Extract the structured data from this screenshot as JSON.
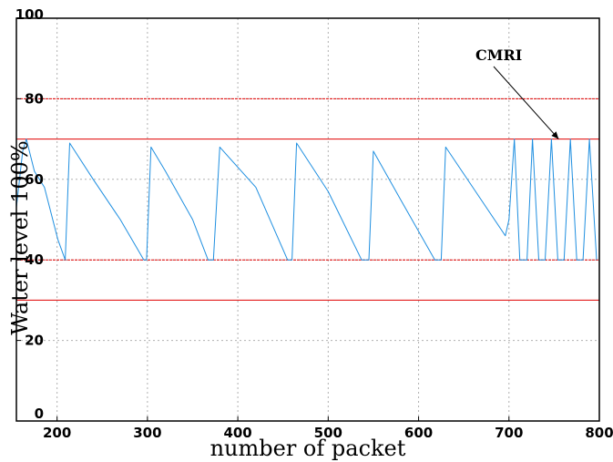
{
  "chart_data": {
    "type": "line",
    "title": "",
    "xlabel": "number of packet",
    "ylabel": "Water level 100%",
    "xlim": [
      155,
      800
    ],
    "ylim": [
      0,
      100
    ],
    "xticks": [
      200,
      300,
      400,
      500,
      600,
      700,
      800
    ],
    "yticks": [
      0,
      20,
      40,
      60,
      80,
      100
    ],
    "xtick_labels": [
      "200",
      "300",
      "400",
      "500",
      "600",
      "700",
      "800"
    ],
    "ytick_labels": [
      "0",
      "20",
      "40",
      "60",
      "80",
      "100"
    ],
    "grid": true,
    "colors": {
      "series": "#1f8fe0",
      "threshold": "#e00000",
      "grid": "#b0b0b0",
      "axes": "#000000"
    },
    "series": [
      {
        "x": [
          155,
          162,
          166,
          175,
          186,
          201,
          209,
          214,
          240,
          270,
          296,
          299,
          304,
          320,
          350,
          367,
          373,
          380,
          420,
          455,
          460,
          465,
          500,
          537,
          545,
          550,
          580,
          618,
          625,
          630,
          660,
          696,
          700,
          706,
          712,
          720,
          726,
          733,
          740,
          747,
          754,
          761,
          768,
          775,
          782,
          789,
          797
        ],
        "values": [
          53,
          67,
          70,
          62,
          58,
          45,
          40,
          69,
          60,
          50,
          40,
          40,
          68,
          62,
          50,
          40,
          40,
          68,
          58,
          40,
          40,
          69,
          57,
          40,
          40,
          67,
          55,
          40,
          40,
          68,
          58,
          46,
          50,
          70,
          40,
          40,
          70,
          40,
          40,
          70,
          40,
          40,
          70,
          40,
          40,
          70,
          40
        ]
      }
    ],
    "reference_lines": [
      {
        "y": 80,
        "style": "dashed"
      },
      {
        "y": 70,
        "style": "solid"
      },
      {
        "y": 40,
        "style": "dashed"
      },
      {
        "y": 30,
        "style": "solid"
      }
    ],
    "annotations": [
      {
        "text": "CMRI",
        "target_x": 755,
        "target_y": 70
      }
    ]
  }
}
